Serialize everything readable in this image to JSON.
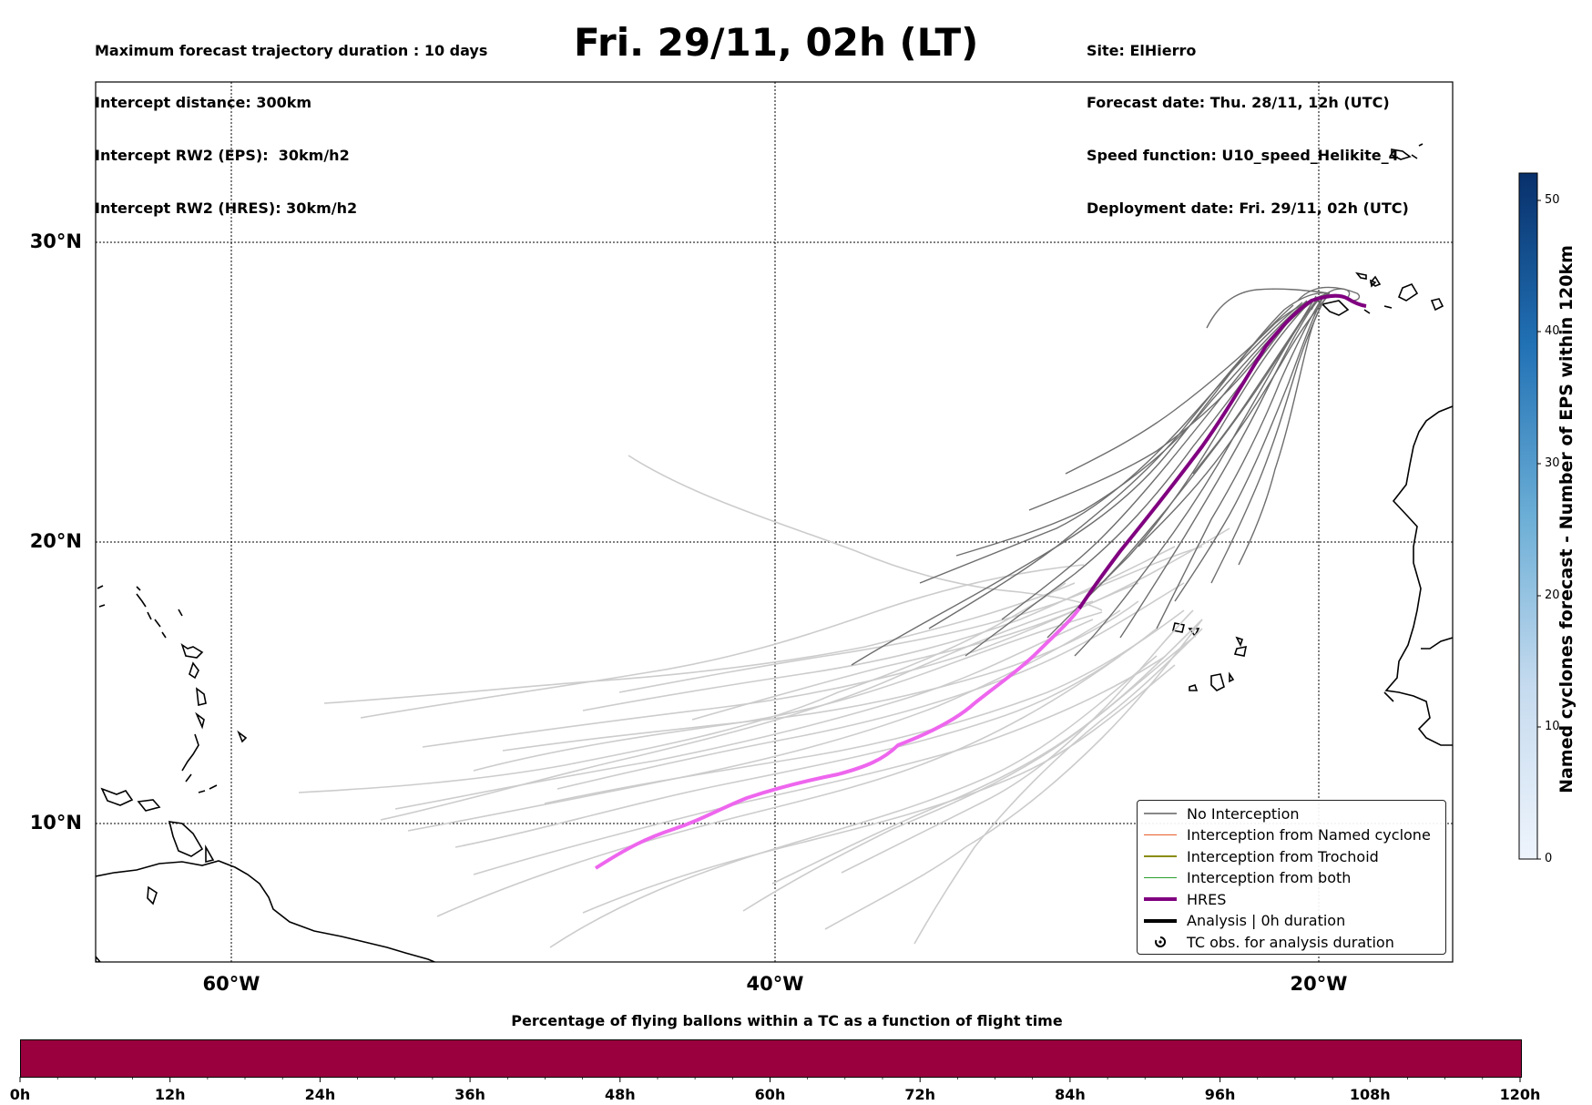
{
  "header": {
    "left_lines": [
      "Maximum forecast trajectory duration : 10 days",
      "Intercept distance: 300km",
      "Intercept RW2 (EPS):  30km/h2",
      "Intercept RW2 (HRES): 30km/h2"
    ],
    "title": "Fri. 29/11, 02h (LT)",
    "right_lines": [
      "Site: ElHierro",
      "Forecast date: Thu. 28/11, 12h (UTC)",
      "Speed function: U10_speed_Helikite_4",
      "Deployment date: Fri. 29/11, 02h (UTC)"
    ]
  },
  "map": {
    "lat_labels": [
      "30°N",
      "20°N",
      "10°N"
    ],
    "lon_labels": [
      "60°W",
      "40°W",
      "20°W"
    ],
    "colors": {
      "no_interception": "#888888",
      "named_cyclone": "#e8602c",
      "trochoid": "#8b8b10",
      "both": "#2ca02c",
      "hres": "#800080",
      "hres_late": "#ee66ee",
      "analysis": "#000000",
      "light_track": "#cccccc",
      "dark_track": "#6e6e6e"
    }
  },
  "legend": {
    "items": [
      {
        "label": "No Interception",
        "color": "#888888",
        "kind": "thin"
      },
      {
        "label": "Interception from Named cyclone",
        "color": "#e8602c",
        "kind": "thin"
      },
      {
        "label": "Interception from Trochoid",
        "color": "#8b8b10",
        "kind": "thin"
      },
      {
        "label": "Interception from both",
        "color": "#2ca02c",
        "kind": "thin"
      },
      {
        "label": "HRES",
        "color": "#800080",
        "kind": "thick"
      },
      {
        "label": "Analysis | 0h duration",
        "color": "#000000",
        "kind": "thick"
      },
      {
        "label": "TC obs. for analysis duration",
        "color": "#000000",
        "kind": "symbol",
        "icon": "cyclone-icon"
      }
    ]
  },
  "colorbar": {
    "title": "Named cyclones forecast - Number of EPS within 120km",
    "ticks": [
      "0",
      "10",
      "20",
      "30",
      "40",
      "50"
    ],
    "range": [
      0,
      52
    ],
    "colors": [
      "#e8f1fb",
      "#08306b"
    ]
  },
  "timebar": {
    "title": "Percentage of flying ballons within a TC as a function of flight time",
    "ticks": [
      "0h",
      "12h",
      "24h",
      "36h",
      "48h",
      "60h",
      "72h",
      "84h",
      "96h",
      "108h",
      "120h"
    ],
    "fill_color": "#99003d"
  }
}
